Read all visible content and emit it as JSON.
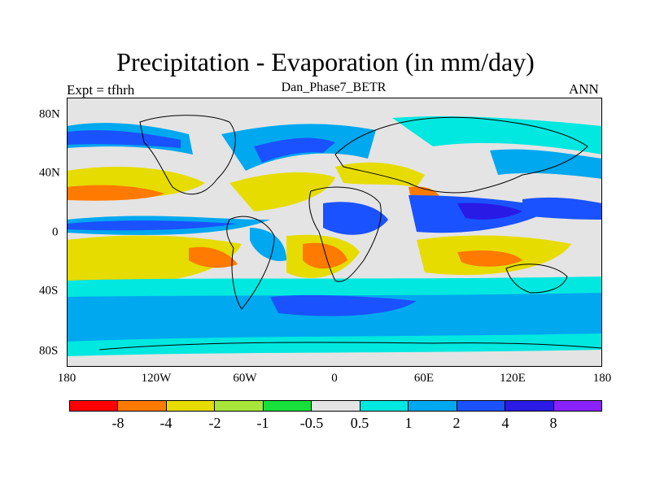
{
  "header": {
    "title": "Precipitation - Evaporation (in mm/day)",
    "subtitle": "Dan_Phase7_BETR",
    "left_label": "Expt = tfhrh",
    "right_label": "ANN"
  },
  "axes": {
    "x_ticks": [
      "180",
      "120W",
      "60W",
      "0",
      "60E",
      "120E",
      "180"
    ],
    "y_ticks": [
      "80N",
      "40N",
      "0",
      "40S",
      "80S"
    ]
  },
  "colorbar": {
    "colors": [
      "#ff0000",
      "#ff7a00",
      "#e6dc00",
      "#a8e63a",
      "#18e03a",
      "#e4e4e4",
      "#00e8e0",
      "#00a8f0",
      "#1a52ff",
      "#2a1ae6",
      "#8a22ff"
    ],
    "labels": [
      "-8",
      "-4",
      "-2",
      "-1",
      "-0.5",
      "0.5",
      "1",
      "2",
      "4",
      "8"
    ]
  },
  "map_colors": {
    "background": "#e4e4e4",
    "strong_neg": "#ff7a00",
    "neg": "#e6dc00",
    "weak_neg": "#a8e63a",
    "slight_neg": "#18e03a",
    "slight_pos": "#00e8e0",
    "pos": "#00a8f0",
    "strong_pos": "#1a52ff",
    "very_pos": "#2a1ae6",
    "extreme": "#8a22ff",
    "coast": "#000000"
  }
}
